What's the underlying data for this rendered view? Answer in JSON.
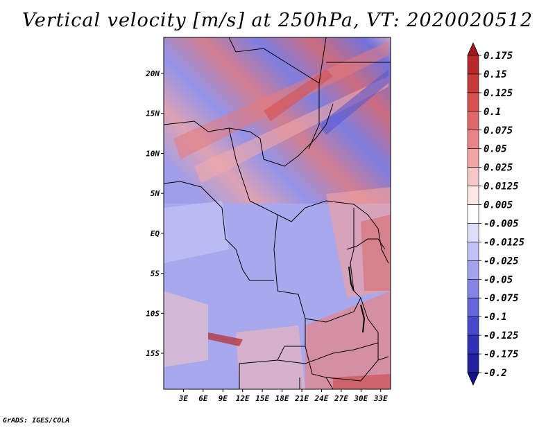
{
  "title": "Vertical velocity [m/s] at 250hPa, VT: 2020020512",
  "credit": "GrADS: IGES/COLA",
  "map": {
    "lat_labels": [
      "20N",
      "15N",
      "10N",
      "5N",
      "EQ",
      "5S",
      "10S",
      "15S"
    ],
    "lon_labels": [
      "3E",
      "6E",
      "9E",
      "12E",
      "15E",
      "18E",
      "21E",
      "24E",
      "27E",
      "30E",
      "33E"
    ],
    "lat_range": [
      -19.5,
      24.5
    ],
    "lon_range": [
      0,
      34.5
    ]
  },
  "colorbar": {
    "levels": [
      "0.175",
      "0.15",
      "0.125",
      "0.1",
      "0.075",
      "0.05",
      "0.025",
      "0.0125",
      "0.005",
      "-0.005",
      "-0.0125",
      "-0.025",
      "-0.05",
      "-0.075",
      "-0.1",
      "-0.125",
      "-0.175",
      "-0.2"
    ],
    "colors": [
      "#a01818",
      "#b82828",
      "#c83a3a",
      "#d65050",
      "#e06868",
      "#ea8484",
      "#f2a4a4",
      "#f8c8c8",
      "#fce6e6",
      "#ffffff",
      "#dedefa",
      "#c0c0f4",
      "#a2a2ee",
      "#8484e6",
      "#6464dc",
      "#4848cc",
      "#3030b8",
      "#2020a0",
      "#12128a"
    ]
  }
}
